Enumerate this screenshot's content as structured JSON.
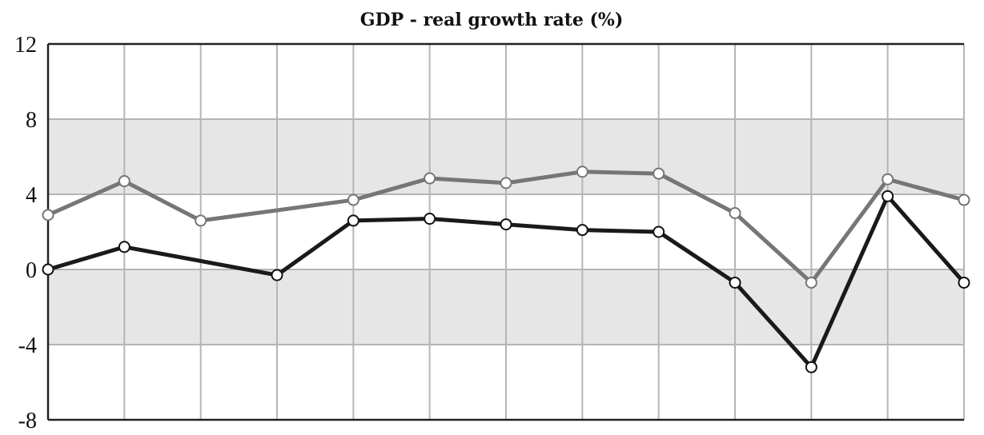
{
  "chart_data": {
    "type": "line",
    "title": "GDP - real growth rate (%)",
    "xlabel": "",
    "ylabel": "",
    "ylim": [
      -8,
      12
    ],
    "yticks": [
      12,
      8,
      4,
      0,
      -4,
      -8
    ],
    "ytick_labels": [
      "12",
      "8",
      "4",
      "0",
      "-4",
      "-8"
    ],
    "x": [
      0,
      1,
      2,
      3,
      4,
      5,
      6,
      7,
      8,
      9,
      10,
      11,
      12
    ],
    "shaded_bands": [
      [
        4,
        8
      ],
      [
        -4,
        0
      ]
    ],
    "grid": true,
    "series": [
      {
        "name": "gray-series",
        "color": "#767676",
        "values": [
          2.9,
          4.7,
          2.6,
          null,
          3.7,
          4.85,
          4.6,
          5.2,
          5.1,
          3.0,
          -0.7,
          4.8,
          3.7
        ]
      },
      {
        "name": "black-series",
        "color": "#1a1a1a",
        "values": [
          0.0,
          1.2,
          null,
          -0.3,
          2.6,
          2.7,
          2.4,
          2.1,
          2.0,
          -0.7,
          -5.2,
          3.9,
          -0.7
        ]
      }
    ]
  }
}
